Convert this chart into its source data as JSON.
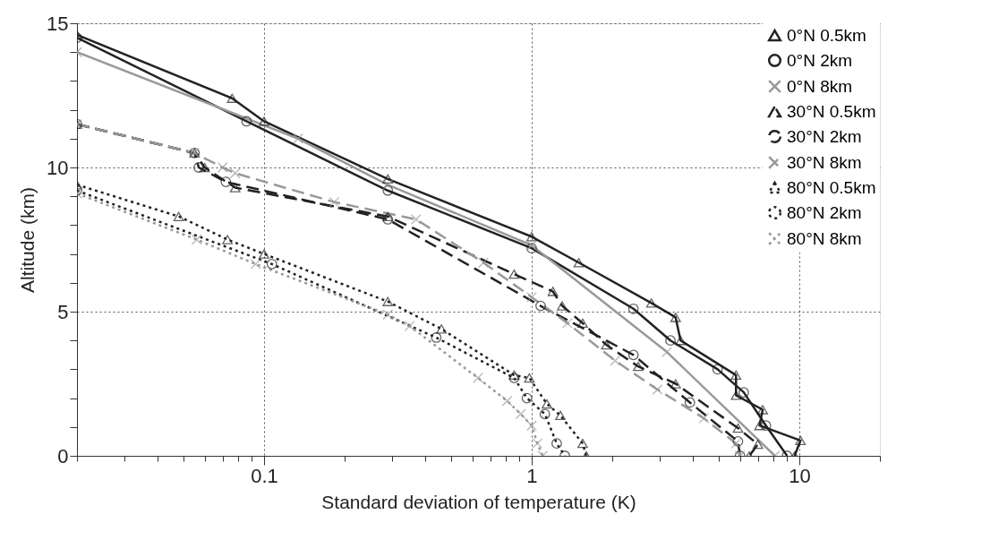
{
  "chart_data": {
    "type": "line",
    "xlabel": "Standard deviation of temperature (K)",
    "ylabel": "Altitude (km)",
    "log": "x",
    "xlim": [
      0.02,
      20
    ],
    "ylim": [
      0,
      15
    ],
    "xticks": [
      {
        "value": 0.02,
        "label": null
      },
      {
        "value": 0.03,
        "label": null
      },
      {
        "value": 0.04,
        "label": null
      },
      {
        "value": 0.05,
        "label": null
      },
      {
        "value": 0.06,
        "label": null
      },
      {
        "value": 0.07,
        "label": null
      },
      {
        "value": 0.08,
        "label": null
      },
      {
        "value": 0.09,
        "label": null
      },
      0.1,
      {
        "value": 0.2,
        "label": null
      },
      {
        "value": 0.3,
        "label": null
      },
      {
        "value": 0.4,
        "label": null
      },
      {
        "value": 0.5,
        "label": null
      },
      {
        "value": 0.6,
        "label": null
      },
      {
        "value": 0.7,
        "label": null
      },
      {
        "value": 0.8,
        "label": null
      },
      {
        "value": 0.9,
        "label": null
      },
      1,
      {
        "value": 2,
        "label": null
      },
      {
        "value": 3,
        "label": null
      },
      {
        "value": 4,
        "label": null
      },
      {
        "value": 5,
        "label": null
      },
      {
        "value": 6,
        "label": null
      },
      {
        "value": 7,
        "label": null
      },
      {
        "value": 8,
        "label": null
      },
      {
        "value": 9,
        "label": null
      },
      10,
      {
        "value": 20,
        "label": null
      }
    ],
    "yticks": [
      0,
      {
        "value": 1,
        "label": null
      },
      {
        "value": 2,
        "label": null
      },
      {
        "value": 3,
        "label": null
      },
      {
        "value": 4,
        "label": null
      },
      5,
      {
        "value": 6,
        "label": null
      },
      {
        "value": 7,
        "label": null
      },
      {
        "value": 8,
        "label": null
      },
      {
        "value": 9,
        "label": null
      },
      10,
      {
        "value": 11,
        "label": null
      },
      {
        "value": 12,
        "label": null
      },
      {
        "value": 13,
        "label": null
      },
      {
        "value": 14,
        "label": null
      },
      15
    ],
    "grid": true,
    "legend": "top right",
    "series": [
      {
        "name": "0°N 0.5km",
        "color": "#222222",
        "line_style": "solid",
        "marker": "triangle",
        "x": [
          0.02,
          0.076,
          0.1,
          0.29,
          1,
          1.5,
          2.8,
          3.45,
          3.6,
          5.8,
          5.8,
          7.3,
          7.1,
          10.1,
          9.6
        ],
        "values": [
          14.6,
          12.4,
          11.6,
          9.6,
          7.6,
          6.7,
          5.3,
          4.8,
          4.0,
          2.8,
          2.1,
          1.6,
          1.05,
          0.53,
          0
        ]
      },
      {
        "name": "0°N 2km",
        "color": "#222222",
        "line_style": "solid",
        "marker": "circle",
        "x": [
          0.02,
          0.086,
          0.29,
          1,
          2.4,
          3.3,
          4.95,
          6.2,
          7.5,
          9.0
        ],
        "values": [
          14.5,
          11.6,
          9.2,
          7.2,
          5.1,
          4.0,
          3.0,
          2.2,
          1.05,
          0
        ]
      },
      {
        "name": "0°N 8km",
        "color": "#999999",
        "line_style": "solid",
        "marker": "cross",
        "x": [
          0.02,
          0.134,
          0.29,
          1,
          3.2,
          8.1
        ],
        "values": [
          14.0,
          11.0,
          9.4,
          7.3,
          3.6,
          0
        ]
      },
      {
        "name": "30°N 0.5km",
        "color": "#222222",
        "line_style": "dashed",
        "marker": "triangle",
        "x": [
          0.02,
          0.055,
          0.06,
          0.078,
          0.29,
          0.86,
          1.2,
          1.3,
          1.55,
          1.9,
          2.5,
          3.45,
          5.9,
          7.0,
          6.5
        ],
        "values": [
          11.5,
          10.5,
          10.0,
          9.3,
          8.3,
          6.3,
          5.7,
          5.2,
          4.6,
          3.85,
          3.1,
          2.5,
          0.96,
          0.4,
          0
        ]
      },
      {
        "name": "30°N 2km",
        "color": "#222222",
        "line_style": "dashed",
        "marker": "circle",
        "x": [
          0.02,
          0.055,
          0.057,
          0.072,
          0.29,
          1.08,
          2.4,
          3.9,
          5.9,
          6.0
        ],
        "values": [
          11.5,
          10.5,
          10.0,
          9.5,
          8.2,
          5.2,
          3.5,
          1.85,
          0.5,
          0
        ]
      },
      {
        "name": "30°N 8km",
        "color": "#999999",
        "line_style": "dashed",
        "marker": "cross",
        "x": [
          0.02,
          0.055,
          0.07,
          0.078,
          0.183,
          0.37,
          0.66,
          1,
          1.36,
          2.05,
          2.95,
          4.4,
          5.8,
          6.0
        ],
        "values": [
          11.5,
          10.5,
          10.0,
          9.8,
          8.8,
          8.2,
          6.7,
          5.5,
          4.6,
          3.3,
          2.3,
          1.3,
          0.43,
          0
        ]
      },
      {
        "name": "80°N 0.5km",
        "color": "#222222",
        "line_style": "dotted",
        "marker": "triangle",
        "x": [
          0.02,
          0.048,
          0.073,
          0.1,
          0.29,
          0.46,
          0.86,
          0.98,
          1.14,
          1.28,
          1.55,
          1.6
        ],
        "values": [
          9.4,
          8.3,
          7.5,
          7.0,
          5.35,
          4.4,
          2.8,
          2.7,
          1.8,
          1.4,
          0.43,
          0
        ]
      },
      {
        "name": "80°N 2km",
        "color": "#222222",
        "line_style": "dotted",
        "marker": "circle",
        "x": [
          0.02,
          0.107,
          0.44,
          0.86,
          0.96,
          1.12,
          1.24,
          1.33
        ],
        "values": [
          9.2,
          6.65,
          4.1,
          2.7,
          2.0,
          1.45,
          0.43,
          0
        ]
      },
      {
        "name": "80°N 8km",
        "color": "#999999",
        "line_style": "dotted",
        "marker": "cross",
        "x": [
          0.02,
          0.056,
          0.093,
          0.29,
          0.35,
          0.63,
          0.81,
          0.91,
          1.0,
          1.05,
          1.1
        ],
        "values": [
          9.1,
          7.5,
          6.65,
          4.9,
          4.5,
          2.7,
          1.9,
          1.45,
          1.05,
          0.43,
          0
        ]
      }
    ]
  }
}
